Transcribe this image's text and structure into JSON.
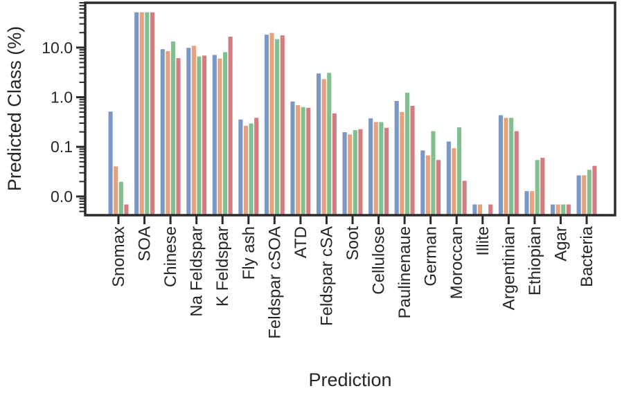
{
  "figure": {
    "background": "#ffffff",
    "xlabel": "Prediction",
    "ylabel": "Predicted Class (%)"
  },
  "chart_data": {
    "type": "bar",
    "title": "",
    "xlabel": "Prediction",
    "ylabel": "Predicted Class (%)",
    "yscale": "log",
    "ylim": [
      0.0042,
      80
    ],
    "grid": false,
    "legend_position": "none",
    "axis_color": "#2b2b2b",
    "text_color": "#262626",
    "ytick_values": [
      10,
      1,
      0.1,
      0.01
    ],
    "ytick_labels": [
      "10.0",
      "1.0",
      "0.1",
      "0.0"
    ],
    "categories": [
      "Snomax",
      "SOA",
      "Chinese",
      "Na Feldspar",
      "K Feldspar",
      "Fly ash",
      "Feldspar cSOA",
      "ATD",
      "Feldspar cSA",
      "Soot",
      "Cellulose",
      "Paulinenaue",
      "German",
      "Moroccan",
      "Illite",
      "Argentinian",
      "Ethiopian",
      "Agar",
      "Bacteria"
    ],
    "series": [
      {
        "name": "blue",
        "color": "#7B97C5",
        "values": [
          0.52,
          52,
          9.4,
          10.0,
          7.2,
          0.36,
          18.4,
          0.83,
          3.05,
          0.2,
          0.38,
          0.85,
          0.086,
          0.13,
          0.007,
          0.44,
          0.013,
          0.007,
          0.027
        ]
      },
      {
        "name": "orange",
        "color": "#E6A27C",
        "values": [
          0.041,
          52,
          8.6,
          11.0,
          6.1,
          0.27,
          20.0,
          0.7,
          2.35,
          0.18,
          0.32,
          0.51,
          0.068,
          0.095,
          0.007,
          0.39,
          0.013,
          0.007,
          0.027
        ]
      },
      {
        "name": "green",
        "color": "#82BF8E",
        "values": [
          0.02,
          52,
          13.5,
          6.7,
          8.2,
          0.3,
          15.0,
          0.64,
          3.13,
          0.22,
          0.32,
          1.25,
          0.21,
          0.25,
          0,
          0.39,
          0.055,
          0.007,
          0.035
        ]
      },
      {
        "name": "red",
        "color": "#D47C7F",
        "values": [
          0.007,
          52,
          6.2,
          7.0,
          16.8,
          0.39,
          17.9,
          0.62,
          0.48,
          0.23,
          0.245,
          0.68,
          0.055,
          0.021,
          0.007,
          0.21,
          0.061,
          0.007,
          0.042
        ]
      }
    ]
  }
}
